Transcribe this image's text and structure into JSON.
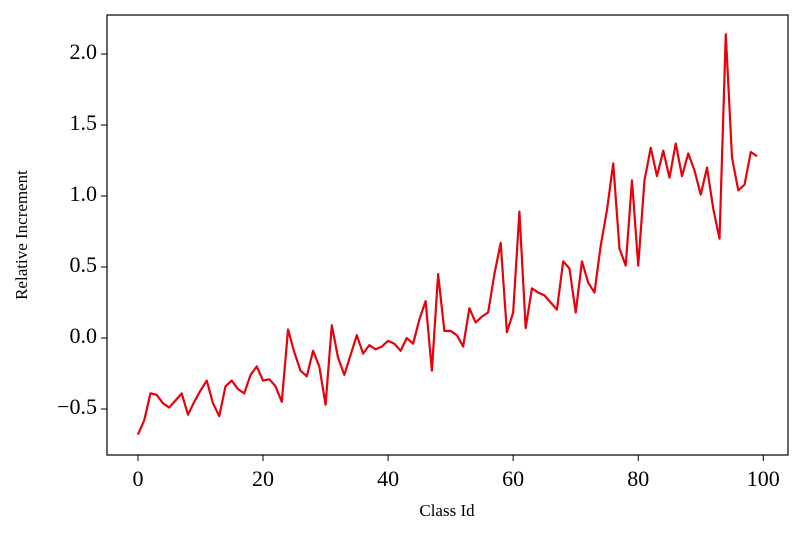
{
  "chart_data": {
    "type": "line",
    "x_label": "Class Id",
    "y_label": "Relative Increment",
    "x": [
      0,
      1,
      2,
      3,
      4,
      5,
      6,
      7,
      8,
      9,
      10,
      11,
      12,
      13,
      14,
      15,
      16,
      17,
      18,
      19,
      20,
      21,
      22,
      23,
      24,
      25,
      26,
      27,
      28,
      29,
      30,
      31,
      32,
      33,
      34,
      35,
      36,
      37,
      38,
      39,
      40,
      41,
      42,
      43,
      44,
      45,
      46,
      47,
      48,
      49,
      50,
      51,
      52,
      53,
      54,
      55,
      56,
      57,
      58,
      59,
      60,
      61,
      62,
      63,
      64,
      65,
      66,
      67,
      68,
      69,
      70,
      71,
      72,
      73,
      74,
      75,
      76,
      77,
      78,
      79,
      80,
      81,
      82,
      83,
      84,
      85,
      86,
      87,
      88,
      89,
      90,
      91,
      92,
      93,
      94,
      95,
      96,
      97,
      98,
      99
    ],
    "series": [
      {
        "color": "#e8000b",
        "values": [
          -0.68,
          -0.58,
          -0.39,
          -0.4,
          -0.46,
          -0.49,
          -0.44,
          -0.39,
          -0.54,
          -0.45,
          -0.37,
          -0.3,
          -0.46,
          -0.55,
          -0.34,
          -0.3,
          -0.36,
          -0.39,
          -0.26,
          -0.2,
          -0.3,
          -0.29,
          -0.34,
          -0.45,
          0.06,
          -0.1,
          -0.23,
          -0.27,
          -0.09,
          -0.2,
          -0.47,
          0.09,
          -0.14,
          -0.26,
          -0.12,
          0.02,
          -0.11,
          -0.05,
          -0.08,
          -0.06,
          -0.02,
          -0.04,
          -0.09,
          0.0,
          -0.04,
          0.13,
          0.26,
          -0.23,
          0.45,
          0.05,
          0.05,
          0.02,
          -0.06,
          0.21,
          0.11,
          0.15,
          0.18,
          0.45,
          0.67,
          0.04,
          0.18,
          0.89,
          0.07,
          0.35,
          0.32,
          0.3,
          0.25,
          0.2,
          0.54,
          0.49,
          0.18,
          0.54,
          0.39,
          0.32,
          0.65,
          0.9,
          1.23,
          0.63,
          0.51,
          1.11,
          0.51,
          1.11,
          1.34,
          1.14,
          1.32,
          1.13,
          1.37,
          1.14,
          1.3,
          1.18,
          1.01,
          1.2,
          0.91,
          0.7,
          2.14,
          1.27,
          1.04,
          1.08,
          1.31,
          1.28
        ]
      }
    ],
    "xlim": [
      -4.95,
      103.95
    ],
    "xticks": [
      0,
      20,
      40,
      60,
      80,
      100
    ],
    "ylim": [
      -0.824,
      2.275
    ],
    "yticks": [
      {
        "value": -0.5,
        "label": "−0.5"
      },
      {
        "value": 0,
        "label": "0.0"
      },
      0.5,
      {
        "value": 1,
        "label": "1.0"
      },
      1.5,
      {
        "value": 2,
        "label": "2.0"
      }
    ]
  }
}
